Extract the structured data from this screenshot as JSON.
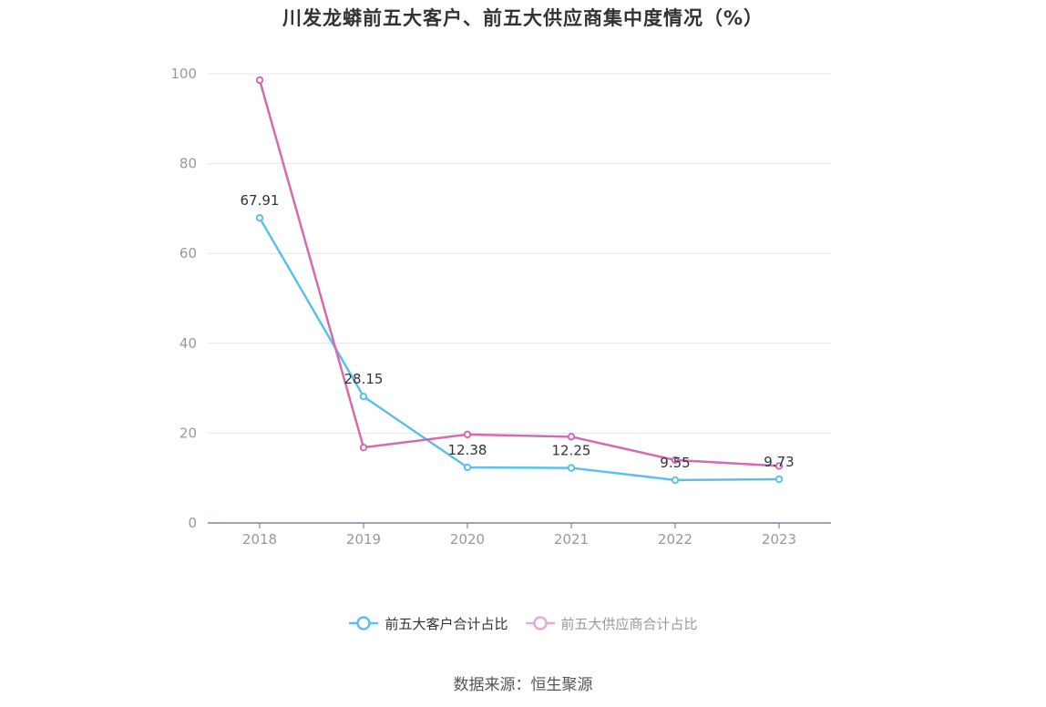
{
  "chart_data": {
    "type": "line",
    "title": "川发龙蟒前五大客户、前五大供应商集中度情况（%）",
    "categories": [
      "2018",
      "2019",
      "2020",
      "2021",
      "2022",
      "2023"
    ],
    "ylim": [
      0,
      100
    ],
    "yticks": [
      0,
      20,
      40,
      60,
      80,
      100
    ],
    "grid": true,
    "legend_position": "bottom",
    "series": [
      {
        "name": "前五大客户合计占比",
        "color": "#5bc0eb",
        "values": [
          67.91,
          28.15,
          12.38,
          12.25,
          9.55,
          9.73
        ],
        "labels_shown": true
      },
      {
        "name": "前五大供应商合计占比",
        "color": "#d36bb3",
        "legend_color": "#e8a9d4",
        "values": [
          98.6,
          16.8,
          19.7,
          19.2,
          14.0,
          12.7
        ],
        "labels_shown": false
      }
    ],
    "source": "数据来源：恒生聚源"
  }
}
